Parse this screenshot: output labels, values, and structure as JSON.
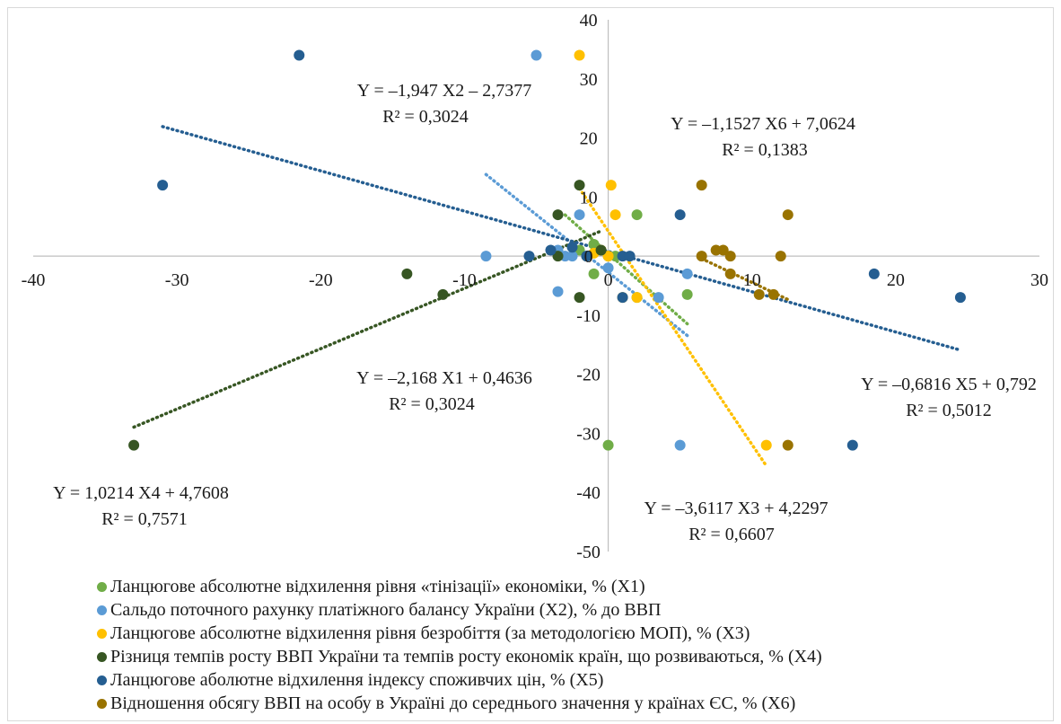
{
  "chart_data": {
    "type": "scatter",
    "xlim": [
      -40,
      30
    ],
    "ylim": [
      -50,
      40
    ],
    "x_ticks": [
      "-40",
      "-30",
      "-20",
      "-10",
      "0",
      "10",
      "20",
      "30"
    ],
    "y_ticks": [
      "40",
      "30",
      "20",
      "10",
      "0",
      "-10",
      "-20",
      "-30",
      "-40",
      "-50"
    ],
    "tick_values_x": [
      -40,
      -30,
      -20,
      -10,
      0,
      10,
      20,
      30
    ],
    "tick_values_y": [
      40,
      30,
      20,
      10,
      0,
      -10,
      -20,
      -30,
      -40,
      -50
    ],
    "grid": false,
    "legend_position": "bottom",
    "series": [
      {
        "name": "Ланцюгове абсолютне відхилення рівня «тінізації» економіки, % (Х1)",
        "color": "#70ad47",
        "points": [
          [
            0,
            -32
          ],
          [
            -1,
            -3
          ],
          [
            2,
            7
          ],
          [
            5.5,
            -6.5
          ],
          [
            2,
            -7
          ],
          [
            -1,
            2
          ],
          [
            -2,
            1
          ],
          [
            0.5,
            0
          ],
          [
            0,
            0
          ]
        ],
        "trendline": {
          "x_from": -3,
          "x_to": 5.5,
          "slope": -2.168,
          "intercept": 0.4636
        },
        "equation": "Y = –2,168 X1 + 0,4636",
        "r2": "R² = 0,3024"
      },
      {
        "name": "Сальдо поточного рахунку платіжного балансу України (Х2), % до ВВП",
        "color": "#5b9bd5",
        "points": [
          [
            -5,
            34
          ],
          [
            -2,
            7
          ],
          [
            -8.5,
            0
          ],
          [
            -3.5,
            -6
          ],
          [
            -3,
            0
          ],
          [
            -2.5,
            0
          ],
          [
            -3.5,
            1
          ],
          [
            5,
            -32
          ],
          [
            5.5,
            -3
          ],
          [
            3.5,
            -7
          ],
          [
            0,
            -2
          ],
          [
            -1.5,
            0
          ]
        ],
        "trendline": {
          "x_from": -8.5,
          "x_to": 5.5,
          "slope": -1.947,
          "intercept": -2.7377
        },
        "equation": "Y = –1,947 X2 – 2,7377",
        "r2": "R² = 0,3024"
      },
      {
        "name": "Ланцюгове абсолютне відхилення рівня безробіття (за методологією МОП), % (Х3)",
        "color": "#ffc000",
        "points": [
          [
            -2,
            34
          ],
          [
            0.2,
            12
          ],
          [
            0.5,
            7
          ],
          [
            2,
            -7
          ],
          [
            11,
            -32
          ],
          [
            1,
            -7
          ],
          [
            -0.5,
            1
          ],
          [
            0,
            0
          ],
          [
            -1,
            0.5
          ]
        ],
        "trendline": {
          "x_from": -2,
          "x_to": 11,
          "slope": -3.6117,
          "intercept": 4.2297
        },
        "equation": "Y = –3,6117 X3 + 4,2297",
        "r2": "R² = 0,6607"
      },
      {
        "name": "Різниця темпів росту ВВП України та темпів росту економік країн, що розвиваються, % (Х4)",
        "color": "#375623",
        "points": [
          [
            -33,
            -32
          ],
          [
            -14,
            -3
          ],
          [
            -11.5,
            -6.5
          ],
          [
            -3.5,
            0
          ],
          [
            -2,
            12
          ],
          [
            -3.5,
            7
          ],
          [
            -2,
            -7
          ],
          [
            -1.5,
            0
          ],
          [
            -0.5,
            1
          ]
        ],
        "trendline": {
          "x_from": -33,
          "x_to": -0.5,
          "slope": 1.0214,
          "intercept": 4.7608
        },
        "equation": "Y = 1,0214 Х4 + 4,7608",
        "r2": "R² = 0,7571"
      },
      {
        "name": "Ланцюгове аболютне відхилення індексу споживчих цін, % (Х5)",
        "color": "#255e91",
        "points": [
          [
            -21.5,
            34
          ],
          [
            -31,
            12
          ],
          [
            -5.5,
            0
          ],
          [
            -4,
            1
          ],
          [
            -1.5,
            0
          ],
          [
            1,
            0
          ],
          [
            1.5,
            0
          ],
          [
            1,
            -7
          ],
          [
            5,
            7
          ],
          [
            17,
            -32
          ],
          [
            18.5,
            -3
          ],
          [
            24.5,
            -7
          ],
          [
            -2.5,
            1.5
          ]
        ],
        "trendline": {
          "x_from": -31,
          "x_to": 24.5,
          "slope": -0.6816,
          "intercept": 0.792
        },
        "equation": "Y = –0,6816 X5 + 0,792",
        "r2": "R² = 0,5012"
      },
      {
        "name": "Відношення обсягу ВВП на особу в Україні до середнього значення у країнах ЄС, % (Х6)",
        "color": "#997300",
        "points": [
          [
            6.5,
            12
          ],
          [
            12.5,
            7
          ],
          [
            8,
            1
          ],
          [
            7.5,
            1
          ],
          [
            6.5,
            0
          ],
          [
            8.5,
            0
          ],
          [
            12,
            0
          ],
          [
            8.5,
            -3
          ],
          [
            10.5,
            -6.5
          ],
          [
            11.5,
            -6.5
          ],
          [
            12.5,
            -32
          ]
        ],
        "trendline": {
          "x_from": 6.5,
          "x_to": 12.5,
          "slope": -1.1527,
          "intercept": 7.0624
        },
        "equation": "Y = –1,1527 X6 + 7,0624",
        "r2": "R² = 0,1383"
      }
    ]
  }
}
